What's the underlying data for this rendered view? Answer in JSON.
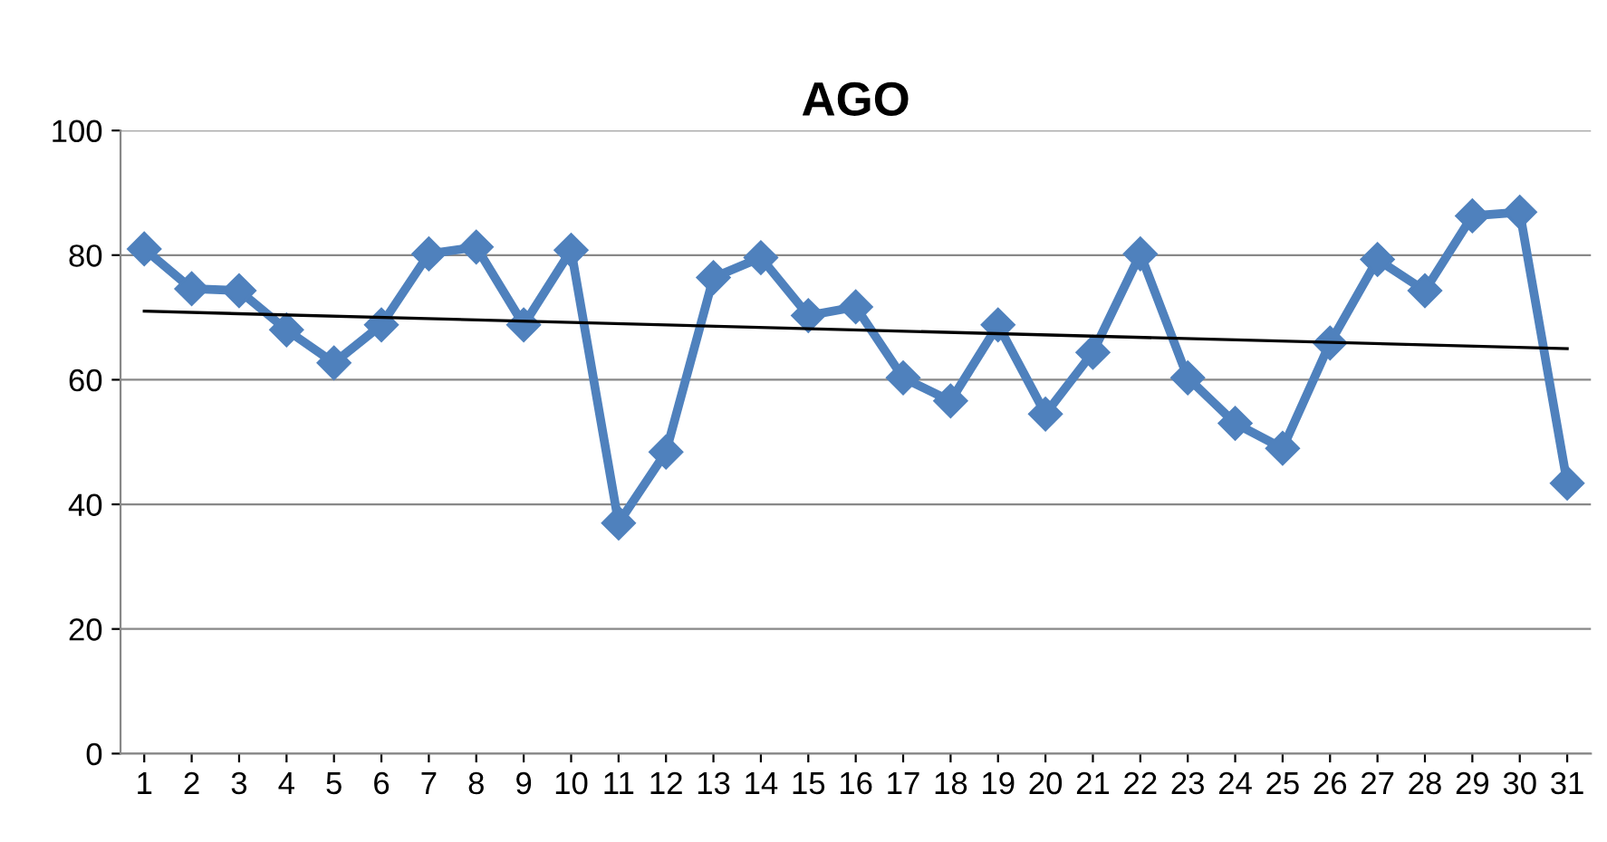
{
  "chart_data": {
    "type": "line",
    "title": "AGO",
    "ylim": [
      0,
      100
    ],
    "yticks": [
      0,
      20,
      40,
      60,
      80,
      100
    ],
    "xlim": [
      0.5,
      31.5
    ],
    "xticks": [
      1,
      2,
      3,
      4,
      5,
      6,
      7,
      8,
      9,
      10,
      11,
      12,
      13,
      14,
      15,
      16,
      17,
      18,
      19,
      20,
      21,
      22,
      23,
      24,
      25,
      26,
      27,
      28,
      29,
      30,
      31
    ],
    "grid": "y",
    "legend": false,
    "series": [
      {
        "type": "line",
        "marker": "diamond",
        "color": "#4f81bd",
        "x": [
          1,
          2,
          3,
          4,
          5,
          6,
          7,
          8,
          9,
          10,
          11,
          12,
          13,
          14,
          15,
          16,
          17,
          18,
          19,
          20,
          21,
          22,
          23,
          24,
          25,
          26,
          27,
          28,
          29,
          30,
          31
        ],
        "values": [
          81,
          74.6,
          74.3,
          68,
          62.7,
          68.8,
          80.2,
          81.3,
          68.8,
          80.8,
          37,
          48.4,
          76.4,
          79.6,
          70.3,
          71.7,
          60.3,
          56.6,
          68.8,
          54.5,
          64.4,
          80.2,
          60.3,
          53,
          49,
          65.9,
          79.3,
          74.3,
          86.3,
          86.9,
          43.4
        ]
      },
      {
        "type": "line",
        "marker": "none",
        "color": "#000000",
        "x": [
          1,
          31
        ],
        "values": [
          71,
          65
        ]
      }
    ]
  }
}
